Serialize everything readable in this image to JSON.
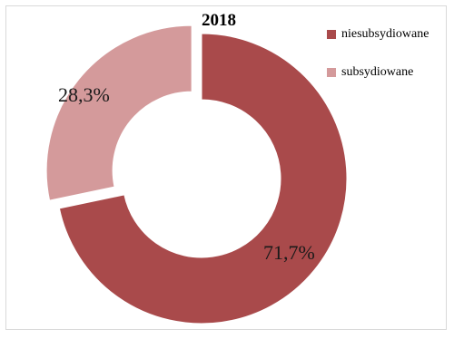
{
  "chart_data": {
    "type": "pie",
    "title": "2018",
    "categories": [
      "niesubsydiowane",
      "subsydiowane"
    ],
    "values": [
      71.7,
      28.3
    ],
    "value_labels": [
      "71,7%",
      "28,3%"
    ],
    "colors": [
      "#a94a4b",
      "#d49a9b"
    ],
    "donut": true,
    "legend_position": "right"
  }
}
